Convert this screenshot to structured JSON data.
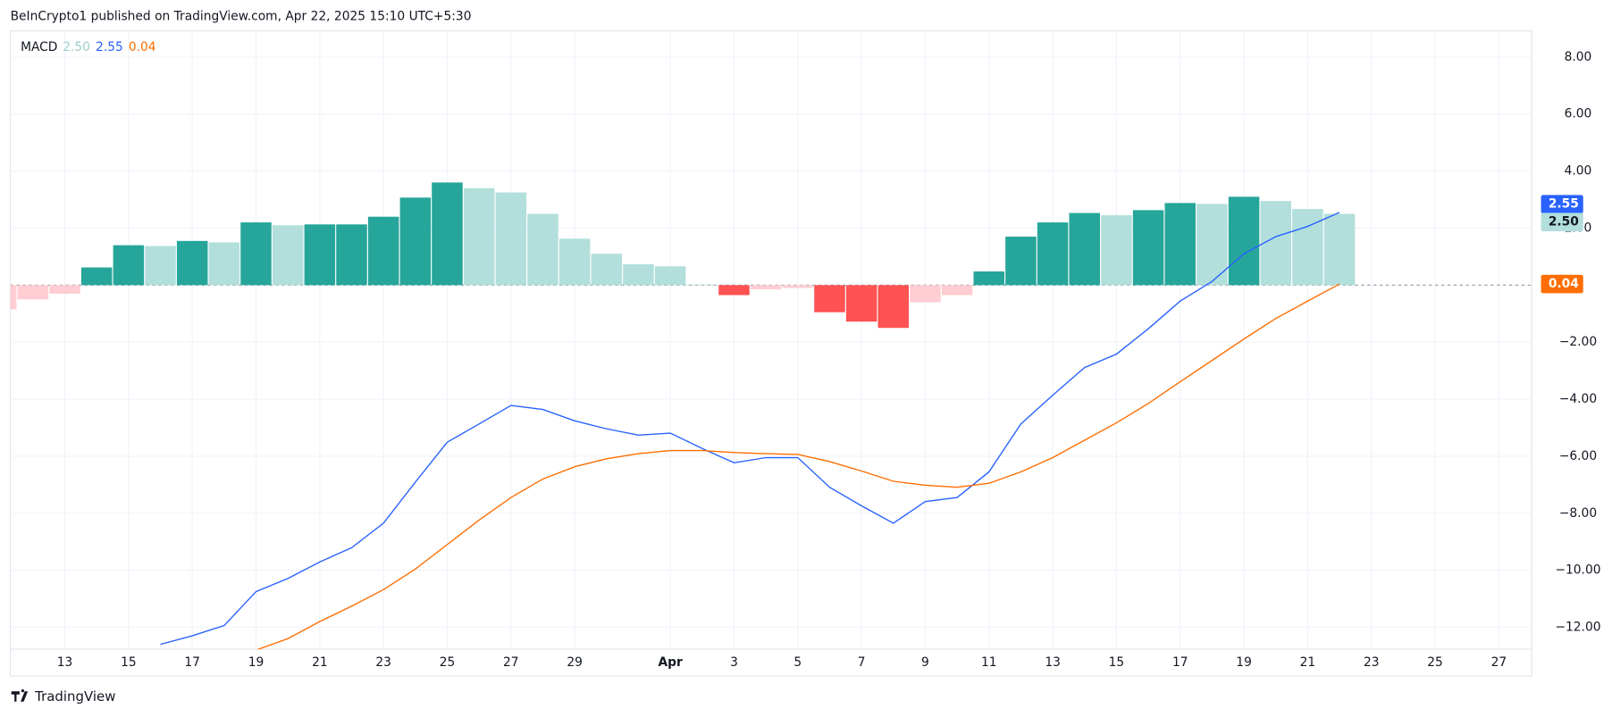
{
  "header": {
    "publisher": "BeInCrypto1 published on TradingView.com, Apr 22, 2025 15:10 UTC+5:30",
    "brand": "TradingView"
  },
  "chart_data": {
    "type": "macd",
    "indicator": "MACD",
    "categories": [
      null,
      null,
      "13",
      null,
      "15",
      null,
      "17",
      null,
      "19",
      null,
      "21",
      null,
      "23",
      null,
      "25",
      null,
      "27",
      null,
      "29",
      null,
      null,
      "Apr",
      null,
      "3",
      null,
      "5",
      null,
      "7",
      null,
      "9",
      null,
      "11",
      null,
      "13",
      null,
      "15",
      null,
      "17",
      null,
      "19",
      null,
      "21",
      null,
      "23",
      null,
      "25",
      null,
      "27",
      null
    ],
    "ylim": [
      -12.77,
      8.92
    ],
    "yticks": [
      {
        "value": 8,
        "label": "8.00"
      },
      {
        "value": 6,
        "label": "6.00"
      },
      {
        "value": 4,
        "label": "4.00"
      },
      {
        "value": 2,
        "label": "2.00"
      },
      {
        "value": -2,
        "label": "−2.00"
      },
      {
        "value": -4,
        "label": "−4.00"
      },
      {
        "value": -6,
        "label": "−6.00"
      },
      {
        "value": -8,
        "label": "−8.00"
      },
      {
        "value": -10,
        "label": "−10.00"
      },
      {
        "value": -12,
        "label": "−12.00"
      }
    ],
    "grid": true,
    "series": [
      {
        "kind": "histogram",
        "color": "#b2dfdb",
        "last_label": "2.50",
        "values": [
          -0.85,
          -0.5,
          -0.3,
          0.62,
          1.4,
          1.37,
          1.55,
          1.5,
          2.2,
          2.1,
          2.13,
          2.13,
          2.4,
          3.07,
          3.6,
          3.4,
          3.25,
          2.5,
          1.63,
          1.1,
          0.73,
          0.66,
          0.02,
          -0.35,
          -0.15,
          -0.1,
          -0.95,
          -1.28,
          -1.5,
          -0.6,
          -0.35,
          0.48,
          1.7,
          2.2,
          2.53,
          2.45,
          2.63,
          2.88,
          2.85,
          3.1,
          2.95,
          2.67,
          2.5,
          null,
          null,
          null,
          null,
          null,
          null
        ],
        "colors": [
          "#ffcdd2",
          "#ffcdd2",
          "#ffcdd2",
          "#26a69a",
          "#26a69a",
          "#b2dfdb",
          "#26a69a",
          "#b2dfdb",
          "#26a69a",
          "#b2dfdb",
          "#26a69a",
          "#26a69a",
          "#26a69a",
          "#26a69a",
          "#26a69a",
          "#b2dfdb",
          "#b2dfdb",
          "#b2dfdb",
          "#b2dfdb",
          "#b2dfdb",
          "#b2dfdb",
          "#b2dfdb",
          "#b2dfdb",
          "#ff5252",
          "#ffcdd2",
          "#ffcdd2",
          "#ff5252",
          "#ff5252",
          "#ff5252",
          "#ffcdd2",
          "#ffcdd2",
          "#26a69a",
          "#26a69a",
          "#26a69a",
          "#26a69a",
          "#b2dfdb",
          "#26a69a",
          "#26a69a",
          "#b2dfdb",
          "#26a69a",
          "#b2dfdb",
          "#b2dfdb",
          "#b2dfdb",
          null,
          null,
          null,
          null,
          null,
          null
        ]
      },
      {
        "kind": "line",
        "color": "#2962ff",
        "last_label": "2.55",
        "values": [
          null,
          null,
          null,
          null,
          null,
          -12.6,
          -12.3,
          -11.94,
          -10.75,
          -10.29,
          -9.71,
          -9.21,
          -8.35,
          -6.91,
          -5.51,
          -4.87,
          -4.22,
          -4.36,
          -4.76,
          -5.04,
          -5.26,
          -5.19,
          -5.73,
          -6.23,
          -6.05,
          -6.05,
          -7.09,
          -7.74,
          -8.35,
          -7.59,
          -7.45,
          -6.55,
          -4.87,
          -3.86,
          -2.89,
          -2.42,
          -1.53,
          -0.56,
          0.13,
          1.1,
          1.7,
          2.06,
          2.55,
          null,
          null,
          null,
          null,
          null,
          null
        ]
      },
      {
        "kind": "line",
        "color": "#ff6d00",
        "last_label": "0.04",
        "values": [
          null,
          null,
          null,
          null,
          null,
          null,
          null,
          null,
          -12.8,
          -12.4,
          -11.8,
          -11.26,
          -10.68,
          -9.96,
          -9.1,
          -8.24,
          -7.45,
          -6.8,
          -6.37,
          -6.09,
          -5.91,
          -5.8,
          -5.8,
          -5.87,
          -5.91,
          -5.94,
          -6.19,
          -6.52,
          -6.88,
          -7.02,
          -7.09,
          -6.95,
          -6.55,
          -6.05,
          -5.44,
          -4.83,
          -4.15,
          -3.39,
          -2.64,
          -1.89,
          -1.17,
          -0.56,
          0.04,
          null,
          null,
          null,
          null,
          null,
          null
        ]
      }
    ]
  }
}
